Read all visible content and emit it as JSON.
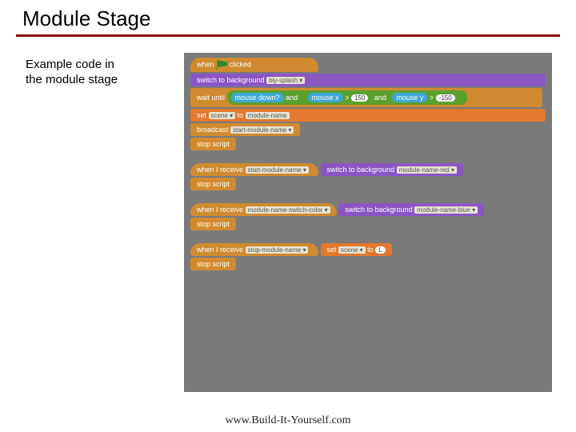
{
  "title": "Module Stage",
  "caption_l1": "Example code in",
  "caption_l2": "the module stage",
  "footer": "www.Build-It-Yourself.com",
  "colors": {
    "rule": "#8b0000",
    "canvas_bg": "#7a7a7a",
    "control": "#d08a2f",
    "looks": "#8b56c4",
    "data": "#e3782e",
    "operator": "#5aa02c",
    "sensing": "#3fa7d6",
    "dropdown_bg": "#e8e2d0"
  },
  "s1": {
    "hat_a": "when",
    "hat_b": "clicked",
    "b1a": "switch to background",
    "b1drop": "biy-splash ▾",
    "b2a": "wait until",
    "op_and": "and",
    "sens_md": "mouse down?",
    "sens_mx": "mouse x",
    "cmp": ">",
    "mx_val": "150",
    "sens_my": "mouse y",
    "my_val": "-150",
    "b3a": "set",
    "b3var": "scene ▾",
    "b3b": "to",
    "b3val": "module-name",
    "b4a": "broadcast",
    "b4drop": "start-module-name ▾",
    "b5": "stop script"
  },
  "s2": {
    "hat": "when I receive",
    "hat_drop": "start-module-name ▾",
    "b1a": "switch to background",
    "b1drop": "module-name-red ▾",
    "b2": "stop script"
  },
  "s3": {
    "hat": "when I receive",
    "hat_drop": "module-name-switch-color ▾",
    "b1a": "switch to background",
    "b1drop": "module-name-blue ▾",
    "b2": "stop script"
  },
  "s4": {
    "hat": "when I receive",
    "hat_drop": "stop-module-name ▾",
    "b1a": "set",
    "b1var": "scene ▾",
    "b1b": "to",
    "b1val": "L",
    "b2": "stop script"
  }
}
